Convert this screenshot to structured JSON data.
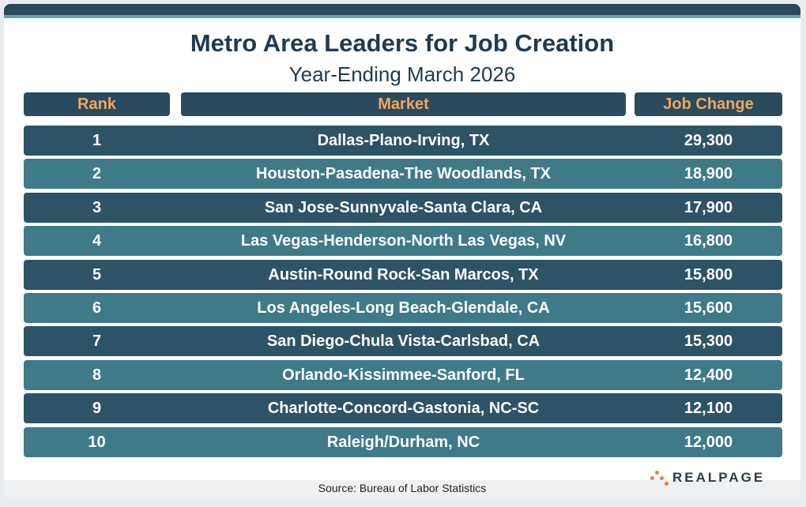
{
  "header": {
    "title": "Metro Area Leaders for Job Creation",
    "subtitle": "Year-Ending March 2026"
  },
  "table": {
    "columns": [
      "Rank",
      "Market",
      "Job Change"
    ],
    "rows": [
      [
        "1",
        "Dallas-Plano-Irving, TX",
        "29,300"
      ],
      [
        "2",
        "Houston-Pasadena-The Woodlands, TX",
        "18,900"
      ],
      [
        "3",
        "San Jose-Sunnyvale-Santa Clara, CA",
        "17,900"
      ],
      [
        "4",
        "Las Vegas-Henderson-North Las Vegas, NV",
        "16,800"
      ],
      [
        "5",
        "Austin-Round Rock-San Marcos, TX",
        "15,800"
      ],
      [
        "6",
        "Los Angeles-Long Beach-Glendale, CA",
        "15,600"
      ],
      [
        "7",
        "San Diego-Chula Vista-Carlsbad, CA",
        "15,300"
      ],
      [
        "8",
        "Orlando-Kissimmee-Sanford, FL",
        "12,400"
      ],
      [
        "9",
        "Charlotte-Concord-Gastonia, NC-SC",
        "12,100"
      ],
      [
        "10",
        "Raleigh/Durham, NC",
        "12,000"
      ]
    ]
  },
  "footer": {
    "source": "Source: Bureau of Labor Statistics",
    "logo": "REALPAGE"
  }
}
